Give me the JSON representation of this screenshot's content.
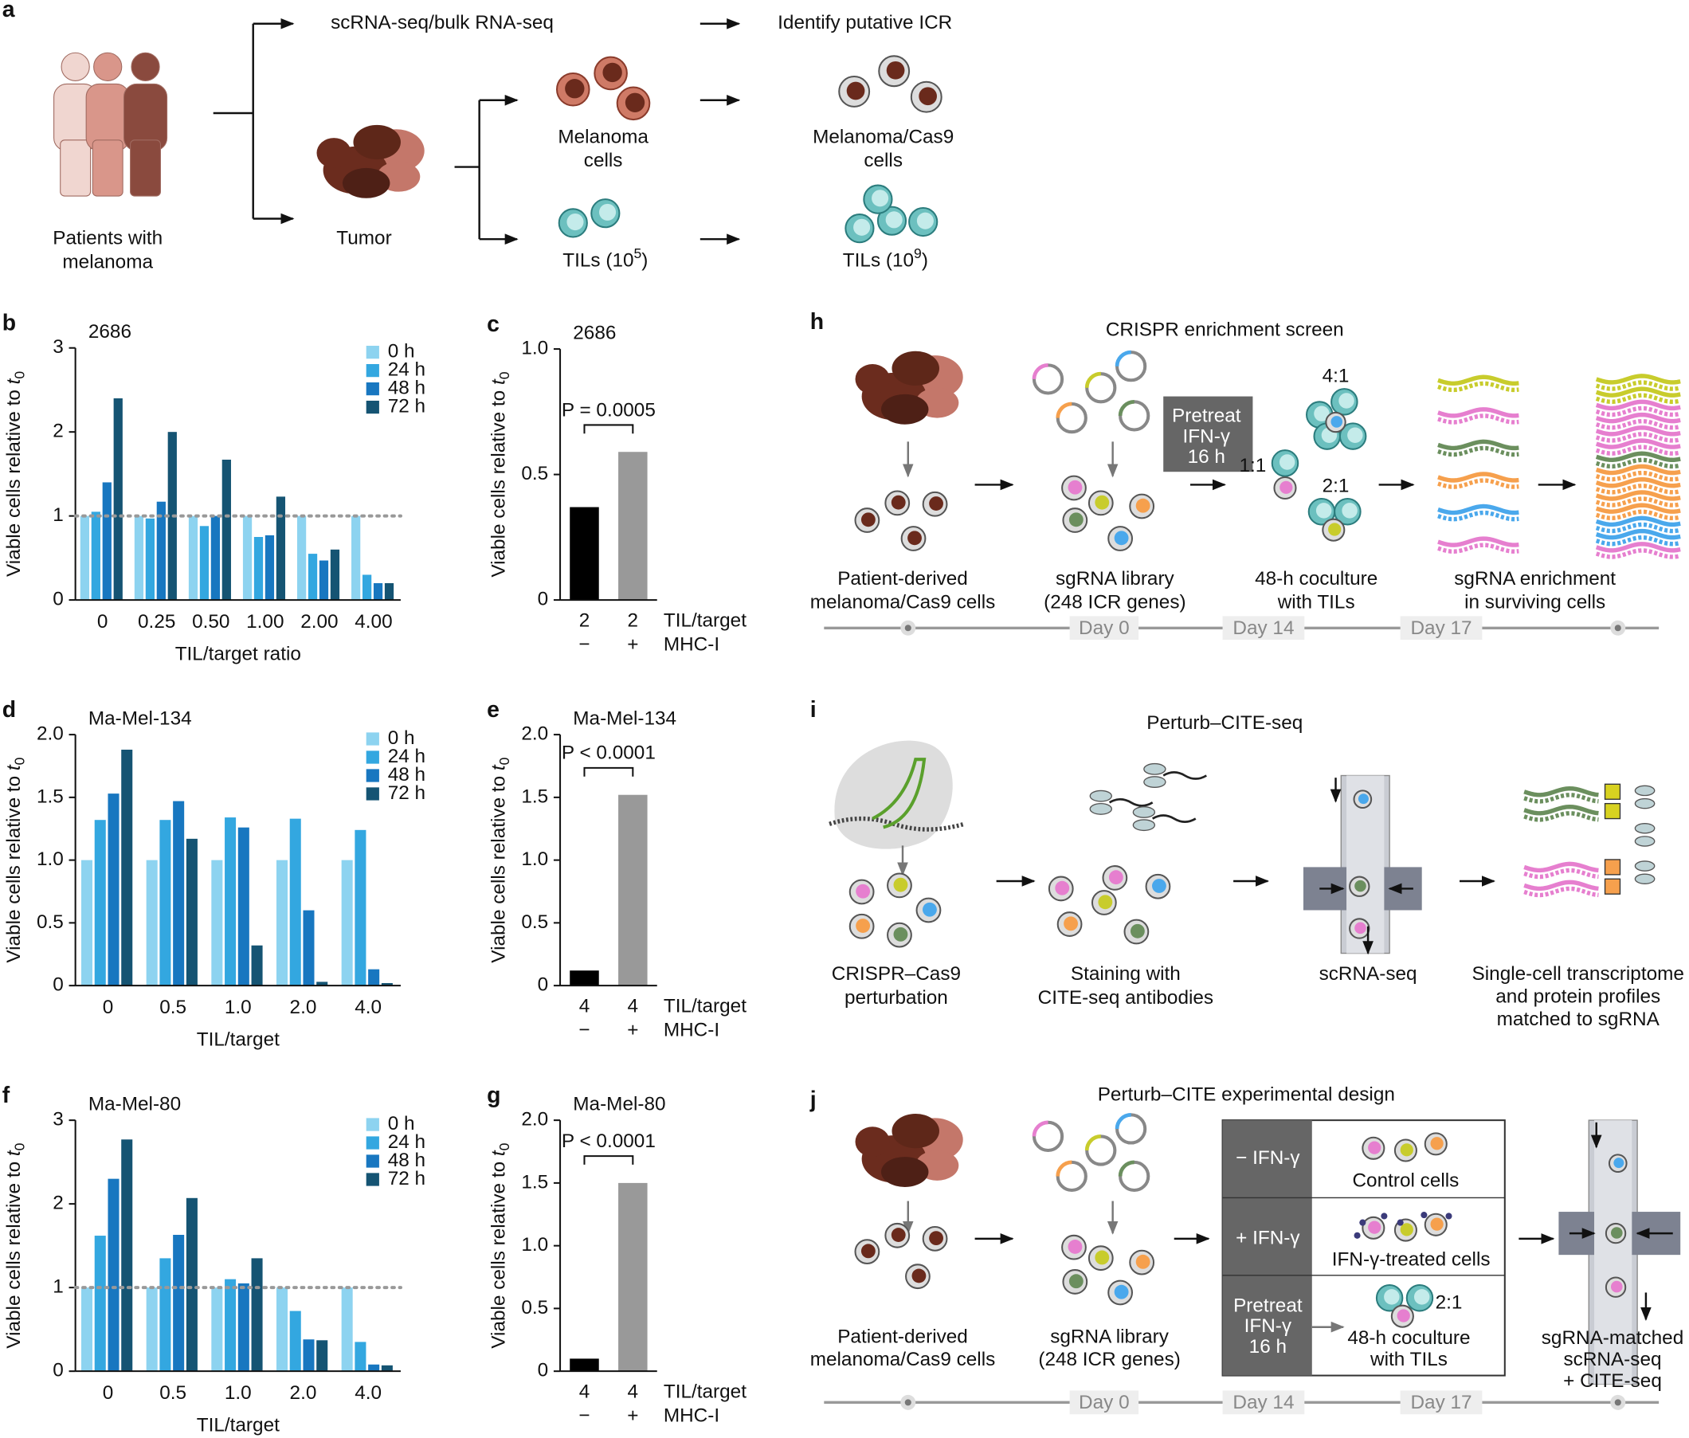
{
  "panel_a": {
    "label": "a",
    "patients": [
      "Patients with",
      "melanoma"
    ],
    "tumor": "Tumor",
    "scrna": "scRNA-seq/bulk RNA-seq",
    "identify": "Identify putative ICR",
    "melanoma_cells": [
      "Melanoma",
      "cells"
    ],
    "tils_small": [
      "TILs (10",
      "5",
      ")"
    ],
    "cas9_cells": [
      "Melanoma/Cas9",
      "cells"
    ],
    "tils_large": [
      "TILs (10",
      "9",
      ")"
    ]
  },
  "chart_data": [
    {
      "type": "bar",
      "panel_label": "b",
      "title": "2686",
      "ylabel": [
        "Viable cells relative to ",
        "t",
        "0"
      ],
      "xlabel": "TIL/target ratio",
      "categories": [
        "0",
        "0.25",
        "0.50",
        "1.00",
        "2.00",
        "4.00"
      ],
      "series": [
        {
          "name": "0 h",
          "color": "#8dd3f0",
          "values": [
            1,
            1,
            1,
            1,
            1,
            1
          ]
        },
        {
          "name": "24 h",
          "color": "#33a7e0",
          "values": [
            1.05,
            0.97,
            0.88,
            0.75,
            0.55,
            0.3
          ]
        },
        {
          "name": "48 h",
          "color": "#1877c0",
          "values": [
            1.4,
            1.17,
            1.0,
            0.77,
            0.47,
            0.2
          ]
        },
        {
          "name": "72 h",
          "color": "#155473",
          "values": [
            2.4,
            2.0,
            1.67,
            1.23,
            0.6,
            0.2
          ]
        }
      ],
      "ylim": [
        0,
        3
      ],
      "yticks": [
        0,
        1,
        2,
        3
      ],
      "refline": 1,
      "legend": "upper right"
    },
    {
      "type": "bar",
      "panel_label": "c",
      "title": "2686",
      "ylabel": [
        "Viable cells relative to ",
        "t",
        "0"
      ],
      "values": [
        0.37,
        0.59
      ],
      "colors": [
        "#000000",
        "#999999"
      ],
      "x_rows": [
        {
          "label": "TIL/target",
          "categories": [
            "2",
            "2"
          ]
        },
        {
          "label": "MHC-I",
          "categories": [
            "−",
            "+"
          ]
        }
      ],
      "annotation": "P = 0.0005",
      "ylim": [
        0,
        1
      ],
      "yticks": [
        0,
        0.5,
        {
          "value": 1,
          "label": "1.0"
        }
      ]
    },
    {
      "type": "bar",
      "panel_label": "d",
      "title": "Ma-Mel-134",
      "ylabel": [
        "Viable cells relative to ",
        "t",
        "0"
      ],
      "xlabel": "TIL/target",
      "categories": [
        "0",
        "0.5",
        "1.0",
        "2.0",
        "4.0"
      ],
      "series": [
        {
          "name": "0 h",
          "color": "#8dd3f0",
          "values": [
            1,
            1,
            1,
            1,
            1
          ]
        },
        {
          "name": "24 h",
          "color": "#33a7e0",
          "values": [
            1.32,
            1.32,
            1.34,
            1.33,
            1.24
          ]
        },
        {
          "name": "48 h",
          "color": "#1877c0",
          "values": [
            1.53,
            1.47,
            1.26,
            0.6,
            0.13
          ]
        },
        {
          "name": "72 h",
          "color": "#155473",
          "values": [
            1.88,
            1.17,
            0.32,
            0.03,
            0.02
          ]
        }
      ],
      "ylim": [
        0,
        2
      ],
      "yticks": [
        0,
        0.5,
        {
          "value": 1,
          "label": "1.0"
        },
        1.5,
        {
          "value": 2,
          "label": "2.0"
        }
      ],
      "legend": "upper right"
    },
    {
      "type": "bar",
      "panel_label": "e",
      "title": "Ma-Mel-134",
      "ylabel": [
        "Viable cells relative to ",
        "t",
        "0"
      ],
      "values": [
        0.12,
        1.52
      ],
      "colors": [
        "#000000",
        "#999999"
      ],
      "x_rows": [
        {
          "label": "TIL/target",
          "categories": [
            "4",
            "4"
          ]
        },
        {
          "label": "MHC-I",
          "categories": [
            "−",
            "+"
          ]
        }
      ],
      "annotation": "P < 0.0001",
      "ylim": [
        0,
        2
      ],
      "yticks": [
        0,
        0.5,
        {
          "value": 1,
          "label": "1.0"
        },
        1.5,
        {
          "value": 2,
          "label": "2.0"
        }
      ]
    },
    {
      "type": "bar",
      "panel_label": "f",
      "title": "Ma-Mel-80",
      "ylabel": [
        "Viable cells relative to ",
        "t",
        "0"
      ],
      "xlabel": "TIL/target",
      "categories": [
        "0",
        "0.5",
        "1.0",
        "2.0",
        "4.0"
      ],
      "series": [
        {
          "name": "0 h",
          "color": "#8dd3f0",
          "values": [
            1,
            1,
            1,
            1,
            1
          ]
        },
        {
          "name": "24 h",
          "color": "#33a7e0",
          "values": [
            1.62,
            1.35,
            1.1,
            0.72,
            0.35
          ]
        },
        {
          "name": "48 h",
          "color": "#1877c0",
          "values": [
            2.3,
            1.63,
            1.05,
            0.38,
            0.08
          ]
        },
        {
          "name": "72 h",
          "color": "#155473",
          "values": [
            2.77,
            2.07,
            1.35,
            0.37,
            0.07
          ]
        }
      ],
      "ylim": [
        0,
        3
      ],
      "yticks": [
        0,
        1,
        2,
        3
      ],
      "refline": 1,
      "legend": "upper right"
    },
    {
      "type": "bar",
      "panel_label": "g",
      "title": "Ma-Mel-80",
      "ylabel": [
        "Viable cells relative to ",
        "t",
        "0"
      ],
      "values": [
        0.1,
        1.5
      ],
      "colors": [
        "#000000",
        "#999999"
      ],
      "x_rows": [
        {
          "label": "TIL/target",
          "categories": [
            "4",
            "4"
          ]
        },
        {
          "label": "MHC-I",
          "categories": [
            "−",
            "+"
          ]
        }
      ],
      "annotation": "P < 0.0001",
      "ylim": [
        0,
        2
      ],
      "yticks": [
        0,
        0.5,
        {
          "value": 1,
          "label": "1.0"
        },
        1.5,
        {
          "value": 2,
          "label": "2.0"
        }
      ]
    }
  ],
  "panel_h": {
    "label": "h",
    "title": "CRISPR enrichment screen",
    "patient_cells": [
      "Patient-derived",
      "melanoma/Cas9 cells"
    ],
    "library": [
      "sgRNA library",
      "(248 ICR genes)"
    ],
    "pretreat": [
      "Pretreat",
      "IFN-γ",
      "16 h"
    ],
    "ratios": [
      "4:1",
      "1:1",
      "2:1"
    ],
    "coculture": [
      "48-h coculture",
      "with TILs"
    ],
    "enrichment": [
      "sgRNA enrichment",
      "in surviving cells"
    ],
    "days": [
      "Day 0",
      "Day 14",
      "Day 17"
    ]
  },
  "panel_i": {
    "label": "i",
    "title": "Perturb–CITE-seq",
    "perturbation": [
      "CRISPR–Cas9",
      "perturbation"
    ],
    "staining": [
      "Staining with",
      "CITE-seq antibodies"
    ],
    "scrna": "scRNA-seq",
    "profiles": [
      "Single-cell transcriptome",
      "and protein profiles",
      "matched to sgRNA"
    ]
  },
  "panel_j": {
    "label": "j",
    "title": "Perturb–CITE experimental design",
    "patient_cells": [
      "Patient-derived",
      "melanoma/Cas9 cells"
    ],
    "library": [
      "sgRNA library",
      "(248 ICR genes)"
    ],
    "conditions": [
      {
        "condition": "− IFN-γ",
        "result": "Control cells"
      },
      {
        "condition": "+ IFN-γ",
        "result": "IFN-γ-treated cells"
      },
      {
        "condition": [
          "Pretreat",
          "IFN-γ",
          "16 h"
        ],
        "ratio": "2:1",
        "result": [
          "48-h coculture",
          "with TILs"
        ]
      }
    ],
    "output": [
      "sgRNA-matched",
      "scRNA-seq",
      "+ CITE-seq"
    ],
    "days": [
      "Day 0",
      "Day 14",
      "Day 17"
    ]
  }
}
